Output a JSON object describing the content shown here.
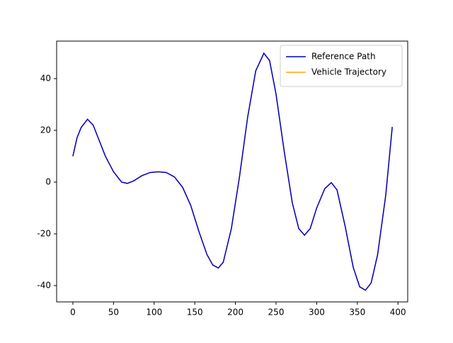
{
  "chart_data": {
    "type": "line",
    "x": [
      0,
      5,
      10,
      18,
      25,
      30,
      40,
      50,
      60,
      67,
      75,
      85,
      95,
      105,
      115,
      125,
      135,
      145,
      155,
      165,
      172,
      179,
      185,
      195,
      205,
      215,
      225,
      235,
      242,
      250,
      260,
      270,
      278,
      285,
      292,
      300,
      310,
      318,
      325,
      335,
      345,
      353,
      360,
      367,
      375,
      385,
      393
    ],
    "series": [
      {
        "name": "Reference Path",
        "color": "#0000cc",
        "values": [
          10,
          17,
          21,
          24.3,
          22,
          18,
          10,
          4,
          0,
          -0.5,
          0.5,
          2.5,
          3.7,
          4,
          3.7,
          2,
          -2,
          -9,
          -19,
          -28,
          -32,
          -33.2,
          -31,
          -18,
          2,
          25,
          43,
          49.8,
          47,
          34,
          12,
          -8,
          -18,
          -20.5,
          -18,
          -10,
          -2.5,
          -0.2,
          -3,
          -17,
          -33,
          -40.5,
          -41.8,
          -39,
          -28,
          -5,
          21.3
        ]
      },
      {
        "name": "Vehicle Trajectory",
        "color": "#ffa500",
        "values": [
          10,
          17,
          21,
          24.3,
          22,
          18,
          10,
          4,
          0,
          -0.5,
          0.5,
          2.5,
          3.7,
          4,
          3.7,
          2,
          -2,
          -9,
          -19,
          -28,
          -32,
          -33.2,
          -31,
          -18,
          2,
          25,
          43,
          49.8,
          47,
          34,
          12,
          -8,
          -18,
          -20.5,
          -18,
          -10,
          -2.5,
          -0.2,
          -3,
          -17,
          -33,
          -40.5,
          -41.8,
          -39,
          -28,
          -5,
          21.3
        ]
      }
    ],
    "xlim": [
      -20,
      412
    ],
    "ylim": [
      -46.3,
      54.5
    ],
    "xticks": [
      0,
      50,
      100,
      150,
      200,
      250,
      300,
      350,
      400
    ],
    "yticks": [
      -40,
      -20,
      0,
      20,
      40
    ],
    "legend": "upper right"
  }
}
